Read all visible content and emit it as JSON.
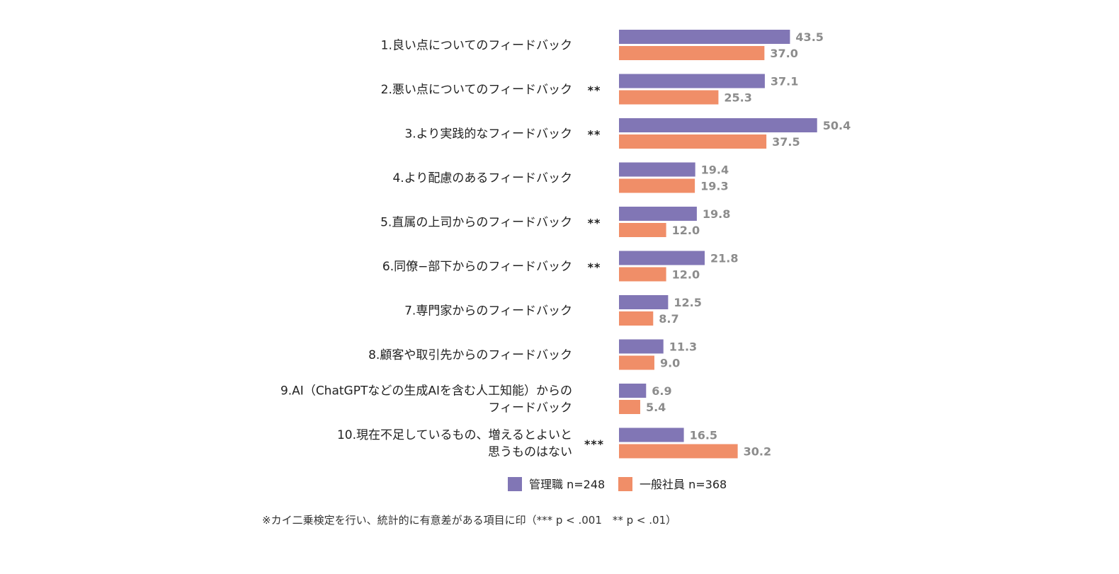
{
  "chart_data": {
    "type": "bar",
    "orientation": "horizontal",
    "categories": [
      [
        "1.良い点についてのフィードバック"
      ],
      [
        "2.悪い点についてのフィードバック"
      ],
      [
        "3.より実践的なフィードバック"
      ],
      [
        "4.より配慮のあるフィードバック"
      ],
      [
        "5.直属の上司からのフィードバック"
      ],
      [
        "6.同僚−部下からのフィードバック"
      ],
      [
        "7.専門家からのフィードバック"
      ],
      [
        "8.顧客や取引先からのフィードバック"
      ],
      [
        "9.AI（ChatGPTなどの生成AIを含む人工知能）からの",
        "フィードバック"
      ],
      [
        "10.現在不足しているもの、増えるとよいと",
        "思うものはない"
      ]
    ],
    "significance": [
      "",
      "**",
      "**",
      "",
      "**",
      "**",
      "",
      "",
      "",
      "***"
    ],
    "series": [
      {
        "name": "管理職 n=248",
        "color": "#8176b5",
        "values": [
          43.5,
          37.1,
          50.4,
          19.4,
          19.8,
          21.8,
          12.5,
          11.3,
          6.9,
          16.5
        ],
        "labels": [
          "43.5",
          "37.1",
          "50.4",
          "19.4",
          "19.8",
          "21.8",
          "12.5",
          "11.3",
          "6.9",
          "16.5"
        ]
      },
      {
        "name": "一般社員 n=368",
        "color": "#f08e68",
        "values": [
          37.0,
          25.3,
          37.5,
          19.3,
          12.0,
          12.0,
          8.7,
          9.0,
          5.4,
          30.2
        ],
        "labels": [
          "37.0",
          "25.3",
          "37.5",
          "19.3",
          "12.0",
          "12.0",
          "8.7",
          "9.0",
          "5.4",
          "30.2"
        ]
      }
    ],
    "legend_position": "bottom",
    "grid": false
  },
  "footnote": "※カイ二乗検定を行い、統計的に有意差がある項目に印（*** p < .001　** p < .01）"
}
